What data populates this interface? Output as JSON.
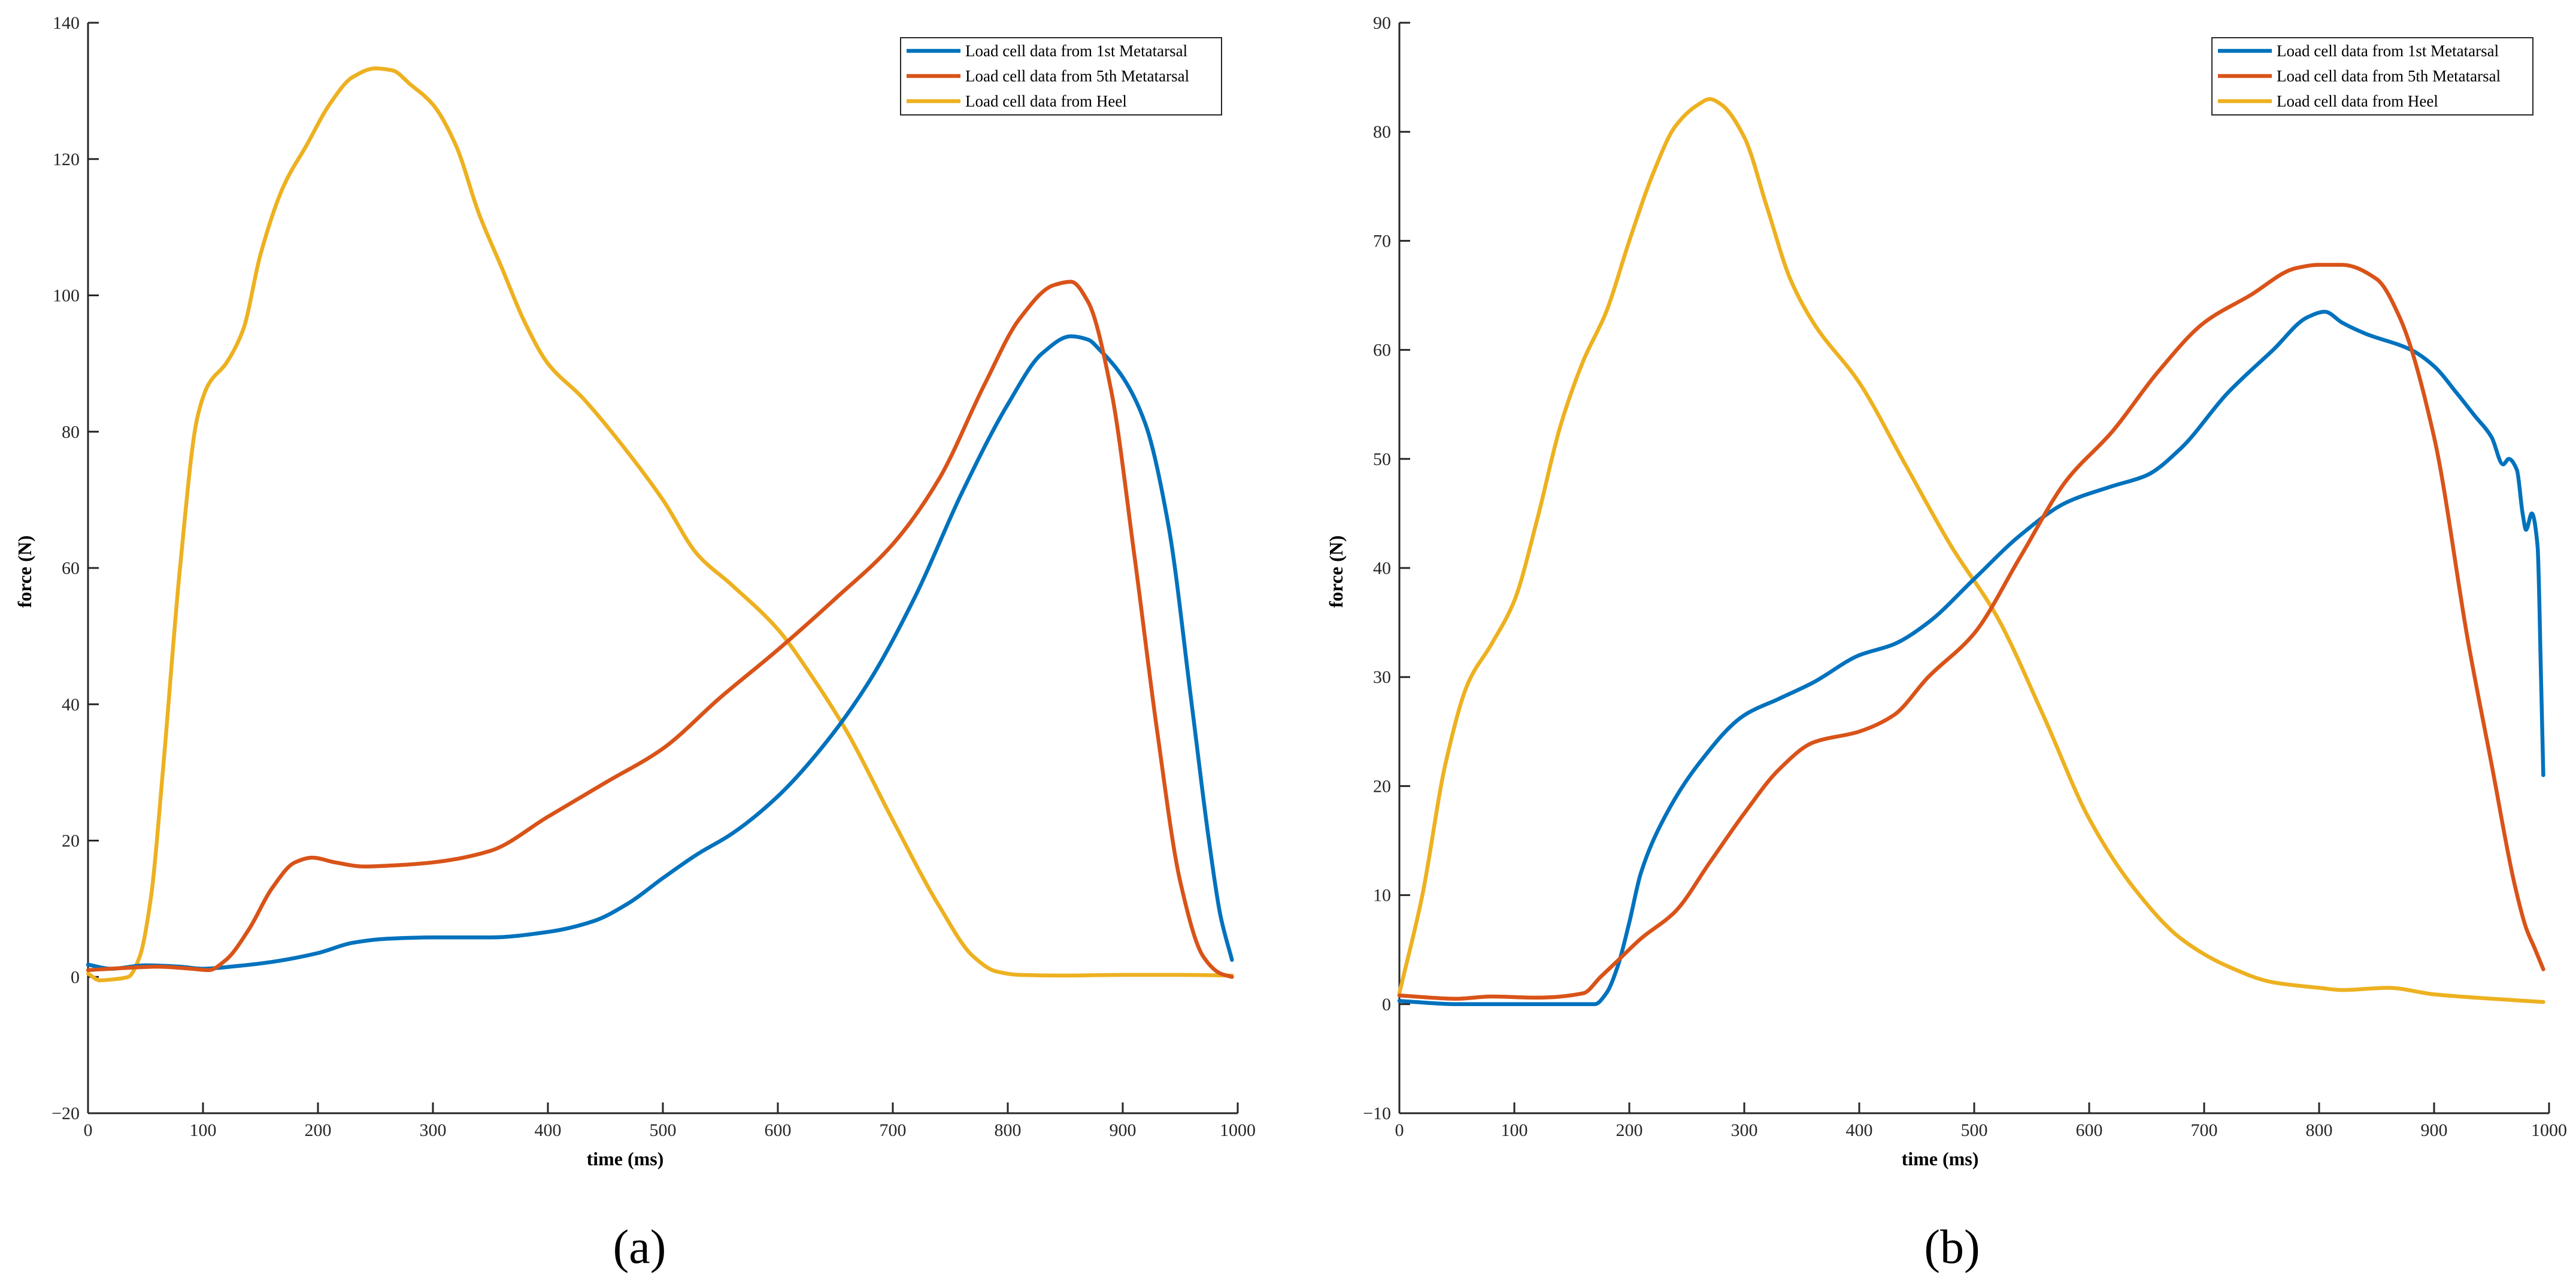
{
  "figure": {
    "panel_labels": [
      "(a)",
      "(b)"
    ]
  },
  "chart_data": [
    {
      "type": "line",
      "panel": "(a)",
      "title": "",
      "xlabel": "time (ms)",
      "ylabel": "force (N)",
      "xlim": [
        0,
        1000
      ],
      "ylim": [
        -20,
        140
      ],
      "xticks": [
        0,
        100,
        200,
        300,
        400,
        500,
        600,
        700,
        800,
        900,
        1000
      ],
      "yticks": [
        -20,
        0,
        20,
        40,
        60,
        80,
        100,
        120,
        140
      ],
      "grid": false,
      "legend_position": "top-right",
      "series": [
        {
          "name": "Load cell data from 1st Metatarsal",
          "color": "#0072BD",
          "x": [
            0,
            20,
            50,
            80,
            100,
            130,
            160,
            200,
            230,
            260,
            300,
            350,
            400,
            440,
            470,
            500,
            530,
            560,
            600,
            640,
            680,
            720,
            760,
            800,
            830,
            855,
            870,
            880,
            900,
            920,
            940,
            960,
            975,
            985,
            995
          ],
          "y": [
            1.8,
            1.2,
            1.7,
            1.5,
            1.2,
            1.6,
            2.2,
            3.5,
            5.0,
            5.6,
            5.8,
            5.8,
            6.6,
            8.2,
            10.8,
            14.5,
            18.0,
            21.0,
            26.5,
            34.0,
            43.5,
            56.0,
            71.0,
            84.0,
            91.5,
            94.0,
            93.5,
            92.0,
            88.0,
            81.0,
            66.0,
            40.0,
            20.0,
            9.0,
            2.5
          ]
        },
        {
          "name": "Load cell data from 5th Metatarsal",
          "color": "#D95319",
          "x": [
            0,
            30,
            60,
            90,
            105,
            120,
            140,
            160,
            180,
            195,
            215,
            240,
            270,
            300,
            350,
            400,
            450,
            500,
            550,
            600,
            650,
            700,
            740,
            780,
            810,
            840,
            855,
            870,
            890,
            910,
            930,
            950,
            970,
            985,
            995
          ],
          "y": [
            1.0,
            1.3,
            1.5,
            1.2,
            1.0,
            2.5,
            7.0,
            13.0,
            16.8,
            17.5,
            16.8,
            16.2,
            16.4,
            16.8,
            18.5,
            23.5,
            28.5,
            33.5,
            41.0,
            48.0,
            55.5,
            63.5,
            73.0,
            87.0,
            96.5,
            101.5,
            102.0,
            99.0,
            86.0,
            62.0,
            36.0,
            14.0,
            3.0,
            0.5,
            0.0
          ]
        },
        {
          "name": "Load cell data from Heel",
          "color": "#EDB120",
          "x": [
            0,
            10,
            25,
            35,
            45,
            55,
            65,
            80,
            95,
            105,
            120,
            135,
            150,
            170,
            190,
            210,
            230,
            250,
            265,
            280,
            300,
            320,
            340,
            360,
            380,
            400,
            430,
            460,
            500,
            530,
            560,
            600,
            630,
            660,
            700,
            740,
            770,
            790,
            810,
            850,
            900,
            950,
            995
          ],
          "y": [
            0.5,
            -0.5,
            -0.3,
            0.0,
            3.0,
            12.0,
            30.0,
            60.0,
            82.0,
            87.0,
            90.0,
            95.0,
            106.0,
            116.0,
            122.0,
            128.0,
            132.0,
            133.3,
            133.0,
            131.0,
            128.0,
            122.0,
            112.0,
            104.0,
            96.0,
            90.0,
            85.0,
            79.0,
            70.0,
            62.0,
            57.5,
            51.0,
            44.0,
            36.0,
            23.0,
            10.5,
            3.0,
            0.8,
            0.3,
            0.2,
            0.3,
            0.3,
            0.2
          ]
        }
      ]
    },
    {
      "type": "line",
      "panel": "(b)",
      "title": "",
      "xlabel": "time (ms)",
      "ylabel": "force (N)",
      "xlim": [
        0,
        1000
      ],
      "ylim": [
        -10,
        90
      ],
      "xticks": [
        0,
        100,
        200,
        300,
        400,
        500,
        600,
        700,
        800,
        900,
        1000
      ],
      "yticks": [
        -10,
        0,
        10,
        20,
        30,
        40,
        50,
        60,
        70,
        80,
        90
      ],
      "grid": false,
      "legend_position": "top-right",
      "series": [
        {
          "name": "Load cell data from 1st Metatarsal",
          "color": "#0072BD",
          "x": [
            0,
            50,
            100,
            140,
            170,
            180,
            190,
            200,
            210,
            230,
            260,
            300,
            330,
            360,
            400,
            430,
            460,
            500,
            540,
            580,
            620,
            650,
            680,
            720,
            760,
            790,
            805,
            820,
            840,
            880,
            900,
            920,
            935,
            950,
            960,
            965,
            972,
            977,
            980,
            985,
            990,
            993,
            995
          ],
          "y": [
            0.3,
            0.0,
            0.0,
            0.0,
            0.0,
            1.0,
            3.5,
            7.5,
            12.0,
            17.0,
            22.0,
            26.5,
            28.0,
            29.5,
            32.0,
            33.0,
            35.0,
            39.0,
            43.0,
            46.0,
            47.5,
            48.5,
            51.0,
            56.0,
            60.0,
            63.0,
            63.5,
            62.5,
            61.5,
            60.0,
            58.5,
            56.0,
            54.0,
            52.0,
            49.5,
            50.0,
            49.0,
            45.0,
            43.5,
            45.0,
            42.0,
            30.0,
            21.0
          ]
        },
        {
          "name": "Load cell data from 5th Metatarsal",
          "color": "#D95319",
          "x": [
            0,
            50,
            80,
            120,
            160,
            175,
            190,
            210,
            240,
            270,
            300,
            330,
            360,
            400,
            430,
            460,
            500,
            540,
            580,
            620,
            660,
            700,
            740,
            780,
            800,
            820,
            850,
            870,
            900,
            930,
            950,
            970,
            980,
            988,
            995
          ],
          "y": [
            0.8,
            0.5,
            0.7,
            0.6,
            1.0,
            2.5,
            4.0,
            6.0,
            8.5,
            13.0,
            17.5,
            21.5,
            24.0,
            25.0,
            26.5,
            30.0,
            34.0,
            41.0,
            48.0,
            52.5,
            58.0,
            62.5,
            65.0,
            67.5,
            67.8,
            67.8,
            66.5,
            63.0,
            52.0,
            33.0,
            22.0,
            11.0,
            7.0,
            5.0,
            3.2
          ]
        },
        {
          "name": "Load cell data from Heel",
          "color": "#EDB120",
          "x": [
            0,
            20,
            40,
            60,
            80,
            100,
            120,
            140,
            160,
            180,
            200,
            220,
            240,
            260,
            270,
            280,
            300,
            320,
            340,
            360,
            400,
            440,
            480,
            520,
            560,
            600,
            640,
            680,
            720,
            760,
            800,
            820,
            860,
            900,
            950,
            995
          ],
          "y": [
            1.0,
            10.0,
            22.0,
            29.5,
            33.0,
            37.0,
            44.5,
            53.0,
            59.0,
            63.5,
            70.0,
            76.0,
            80.5,
            82.5,
            83.0,
            82.5,
            79.5,
            73.0,
            66.5,
            62.5,
            57.0,
            49.5,
            42.0,
            35.5,
            26.5,
            17.0,
            10.5,
            6.0,
            3.5,
            2.0,
            1.5,
            1.3,
            1.5,
            0.9,
            0.5,
            0.2
          ]
        }
      ]
    }
  ]
}
